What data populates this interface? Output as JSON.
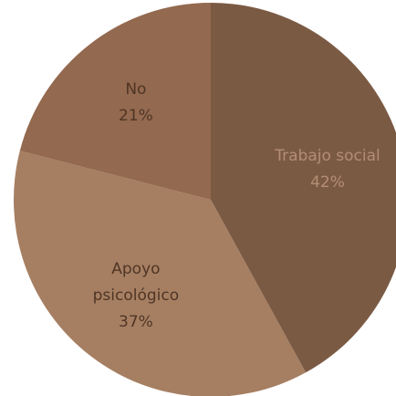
{
  "chart_data": {
    "type": "pie",
    "categories": [
      "Trabajo social",
      "Apoyo psicológico",
      "No"
    ],
    "values": [
      42,
      37,
      21
    ],
    "value_labels": [
      "42%",
      "37%",
      "21%"
    ],
    "colors": [
      "#7b5a44",
      "#a67f62",
      "#93694f"
    ]
  }
}
